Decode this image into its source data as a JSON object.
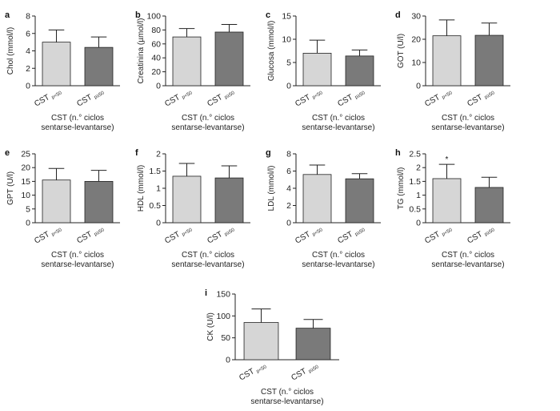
{
  "chart_data": [
    {
      "type": "bar",
      "panel": "a",
      "ylabel": "Chol (mmol/l)",
      "ylim": [
        0,
        8
      ],
      "yticks": [
        0,
        2,
        4,
        6,
        8
      ],
      "categories": [
        {
          "main": "CST",
          "sub": "p<50"
        },
        {
          "main": "CST",
          "sub": "p≥50"
        }
      ],
      "values": [
        5.0,
        4.4
      ],
      "errors": [
        1.4,
        1.2
      ],
      "xlabel": [
        "CST (n.° ciclos",
        "sentarse-levantarse)"
      ],
      "annotations": []
    },
    {
      "type": "bar",
      "panel": "b",
      "ylabel": "Creatinina (µmol/l)",
      "ylim": [
        0,
        100
      ],
      "yticks": [
        0,
        20,
        40,
        60,
        80,
        100
      ],
      "categories": [
        {
          "main": "CST",
          "sub": "p<50"
        },
        {
          "main": "CST",
          "sub": "p≥50"
        }
      ],
      "values": [
        70,
        77
      ],
      "errors": [
        12,
        11
      ],
      "xlabel": [
        "CST (n.° ciclos",
        "sentarse-levantarse)"
      ],
      "annotations": []
    },
    {
      "type": "bar",
      "panel": "c",
      "ylabel": "Glucosa (mmol/l)",
      "ylim": [
        0,
        15
      ],
      "yticks": [
        0,
        5,
        10,
        15
      ],
      "categories": [
        {
          "main": "CST",
          "sub": "p<50"
        },
        {
          "main": "CST",
          "sub": "p≥50"
        }
      ],
      "values": [
        7.0,
        6.4
      ],
      "errors": [
        2.8,
        1.3
      ],
      "xlabel": [
        "CST (n.° ciclos",
        "sentarse-levantarse)"
      ],
      "annotations": []
    },
    {
      "type": "bar",
      "panel": "d",
      "ylabel": "GOT (U/l)",
      "ylim": [
        0,
        30
      ],
      "yticks": [
        0,
        10,
        20,
        30
      ],
      "categories": [
        {
          "main": "CST",
          "sub": "p<50"
        },
        {
          "main": "CST",
          "sub": "p≥50"
        }
      ],
      "values": [
        21.5,
        21.7
      ],
      "errors": [
        6.8,
        5.3
      ],
      "xlabel": [
        "CST (n.° ciclos",
        "sentarse-levantarse)"
      ],
      "annotations": []
    },
    {
      "type": "bar",
      "panel": "e",
      "ylabel": "GPT (U/l)",
      "ylim": [
        0,
        25
      ],
      "yticks": [
        0,
        5,
        10,
        15,
        20,
        25
      ],
      "categories": [
        {
          "main": "CST",
          "sub": "p<50"
        },
        {
          "main": "CST",
          "sub": "p≥50"
        }
      ],
      "values": [
        15.5,
        15.0
      ],
      "errors": [
        4.2,
        4.0
      ],
      "xlabel": [
        "CST (n.° ciclos",
        "sentarse-levantarse)"
      ],
      "annotations": []
    },
    {
      "type": "bar",
      "panel": "f",
      "ylabel": "HDL (mmol/l)",
      "ylim": [
        0,
        2.0
      ],
      "yticks": [
        0,
        0.5,
        1.0,
        1.5,
        2.0
      ],
      "categories": [
        {
          "main": "CST",
          "sub": "p<50"
        },
        {
          "main": "CST",
          "sub": "p≥50"
        }
      ],
      "values": [
        1.35,
        1.3
      ],
      "errors": [
        0.37,
        0.35
      ],
      "xlabel": [
        "CST (n.° ciclos",
        "sentarse-levantarse)"
      ],
      "annotations": []
    },
    {
      "type": "bar",
      "panel": "g",
      "ylabel": "LDL (mmol/l)",
      "ylim": [
        0,
        8
      ],
      "yticks": [
        0,
        2,
        4,
        6,
        8
      ],
      "categories": [
        {
          "main": "CST",
          "sub": "p<50"
        },
        {
          "main": "CST",
          "sub": "p≥50"
        }
      ],
      "values": [
        5.6,
        5.1
      ],
      "errors": [
        1.1,
        0.6
      ],
      "xlabel": [
        "CST (n.° ciclos",
        "sentarse-levantarse)"
      ],
      "annotations": []
    },
    {
      "type": "bar",
      "panel": "h",
      "ylabel": "TG (mmol/l)",
      "ylim": [
        0,
        2.5
      ],
      "yticks": [
        0,
        0.5,
        1.0,
        1.5,
        2.0,
        2.5
      ],
      "categories": [
        {
          "main": "CST",
          "sub": "p<50"
        },
        {
          "main": "CST",
          "sub": "p≥50"
        }
      ],
      "values": [
        1.6,
        1.28
      ],
      "errors": [
        0.52,
        0.37
      ],
      "xlabel": [
        "CST (n.° ciclos",
        "sentarse-levantarse)"
      ],
      "annotations": [
        {
          "text": "*",
          "category_index": 0
        }
      ]
    },
    {
      "type": "bar",
      "panel": "i",
      "ylabel": "CK (U/l)",
      "ylim": [
        0,
        150
      ],
      "yticks": [
        0,
        50,
        100,
        150
      ],
      "categories": [
        {
          "main": "CST",
          "sub": "p<50"
        },
        {
          "main": "CST",
          "sub": "p≥50"
        }
      ],
      "values": [
        85,
        72
      ],
      "errors": [
        31,
        20
      ],
      "xlabel": [
        "CST (n.° ciclos",
        "sentarse-levantarse)"
      ],
      "annotations": []
    }
  ],
  "colors": {
    "bar1": "#d6d6d6",
    "bar2": "#7a7a7a",
    "stroke": "#222222"
  }
}
